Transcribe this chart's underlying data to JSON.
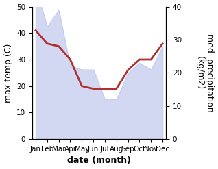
{
  "months": [
    "Jan",
    "Feb",
    "Mar",
    "Apr",
    "May",
    "Jun",
    "Jul",
    "Aug",
    "Sep",
    "Oct",
    "Nov",
    "Dec"
  ],
  "x": [
    0,
    1,
    2,
    3,
    4,
    5,
    6,
    7,
    8,
    9,
    10,
    11
  ],
  "temp_line": [
    41,
    36,
    35,
    30,
    20,
    19,
    19,
    19,
    26,
    30,
    30,
    36
  ],
  "precip_mm": [
    46,
    34,
    39,
    22,
    21,
    21,
    12,
    12,
    20,
    23,
    21,
    28
  ],
  "ylim_left": [
    0,
    50
  ],
  "ylim_right": [
    0,
    40
  ],
  "area_color": "#b0b8e8",
  "area_alpha": 0.55,
  "line_color": "#b03030",
  "line_width": 2.0,
  "xlabel": "date (month)",
  "ylabel_left": "max temp (C)",
  "ylabel_right": "med. precipitation\n(kg/m2)",
  "label_fontsize": 9,
  "tick_fontsize": 7.5
}
